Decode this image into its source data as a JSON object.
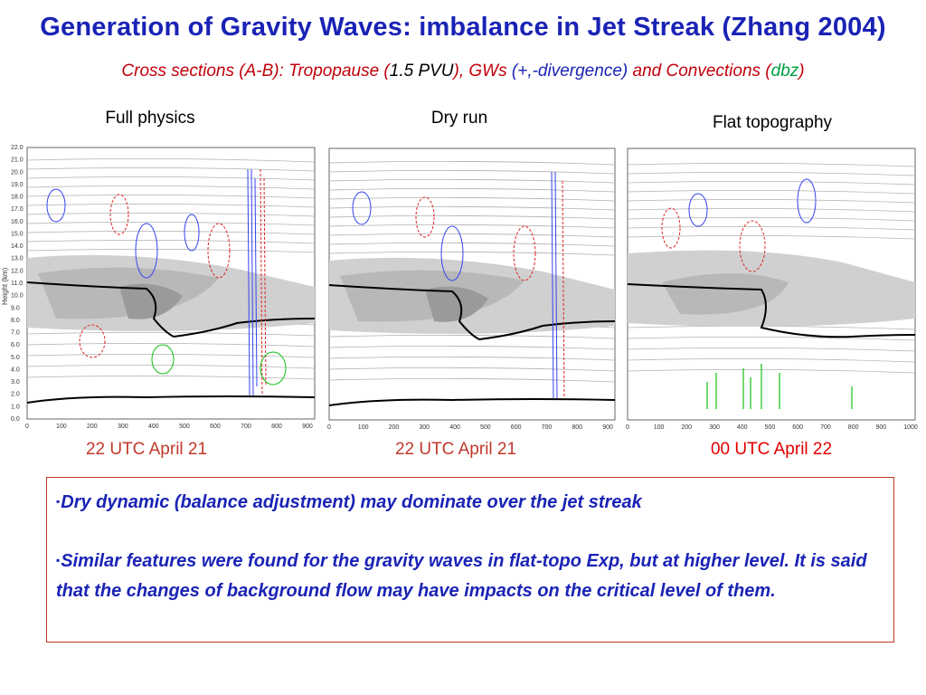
{
  "slide": {
    "title": "Generation of Gravity Waves: imbalance in Jet Streak (Zhang 2004)",
    "subtitle": {
      "part1": "Cross sections (A-B): Tropopause (",
      "part2": "1.5 PVU",
      "part3": "), GWs ",
      "part4": "(+,-divergence)",
      "part5": " and Convections (",
      "part6": "dbz",
      "part7": ")"
    }
  },
  "panels": [
    {
      "label": "Full physics",
      "time": "22 UTC April 21"
    },
    {
      "label": "Dry run",
      "time": "22 UTC April 21"
    },
    {
      "label": "Flat topography",
      "time": "00 UTC April 22"
    }
  ],
  "axis": {
    "y_label": "Height (km)",
    "y_ticks": [
      "0.0",
      "1.0",
      "2.0",
      "3.0",
      "4.0",
      "5.0",
      "6.0",
      "7.0",
      "8.0",
      "9.0",
      "10.0",
      "11.0",
      "12.0",
      "13.0",
      "14.0",
      "15.0",
      "16.0",
      "17.0",
      "18.0",
      "19.0",
      "20.0",
      "21.0",
      "22.0"
    ],
    "x_ticks_a": [
      "0",
      "100",
      "200",
      "300",
      "400",
      "500",
      "600",
      "700",
      "800",
      "900"
    ],
    "x_ticks_c": [
      "0",
      "100",
      "200",
      "300",
      "400",
      "500",
      "600",
      "700",
      "800",
      "900",
      "1000"
    ]
  },
  "bullets": {
    "marker": "▪",
    "item1": "Dry dynamic (balance adjustment) may dominate over the jet streak",
    "item2": "Similar features were found for the gravity waves in flat-topo Exp, but at higher level. It is said that the changes of background flow may have impacts on the critical level of them."
  },
  "colors": {
    "title": "#1a23b5",
    "subtitle": "#c0000a",
    "time_dark_red": "#c0392b",
    "time_red": "#e00000",
    "bullet_border": "#c0392b",
    "contour_blue": "#3344ee",
    "contour_red": "#e02020",
    "contour_green": "#10c010"
  }
}
